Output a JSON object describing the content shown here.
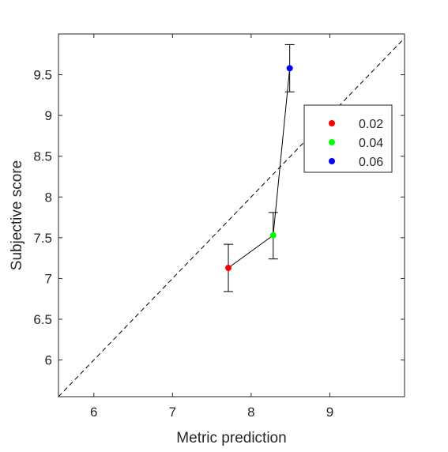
{
  "chart_data": {
    "type": "scatter",
    "xlabel": "Metric prediction",
    "ylabel": "Subjective score",
    "xlim": [
      5.55,
      9.95
    ],
    "ylim": [
      5.55,
      10.0
    ],
    "x_ticks": [
      6,
      7,
      8,
      9
    ],
    "x_tick_labels": [
      "6",
      "7",
      "8",
      "9"
    ],
    "y_ticks": [
      6,
      6.5,
      7,
      7.5,
      8,
      8.5,
      9,
      9.5
    ],
    "y_tick_labels": [
      "6",
      "6.5",
      "7",
      "7.5",
      "8",
      "8.5",
      "9",
      "9.5"
    ],
    "grid": false,
    "legend_position": "top-right",
    "reference_line": "identity (y = x), dashed",
    "connecting_line": true,
    "series": [
      {
        "name": "0.02",
        "color": "#ff0000",
        "x": 7.71,
        "y": 7.13,
        "err_low": 6.84,
        "err_high": 7.42
      },
      {
        "name": "0.04",
        "color": "#00ff00",
        "x": 8.28,
        "y": 7.53,
        "err_low": 7.24,
        "err_high": 7.81
      },
      {
        "name": "0.06",
        "color": "#0000ff",
        "x": 8.49,
        "y": 9.58,
        "err_low": 9.29,
        "err_high": 9.87
      }
    ]
  }
}
